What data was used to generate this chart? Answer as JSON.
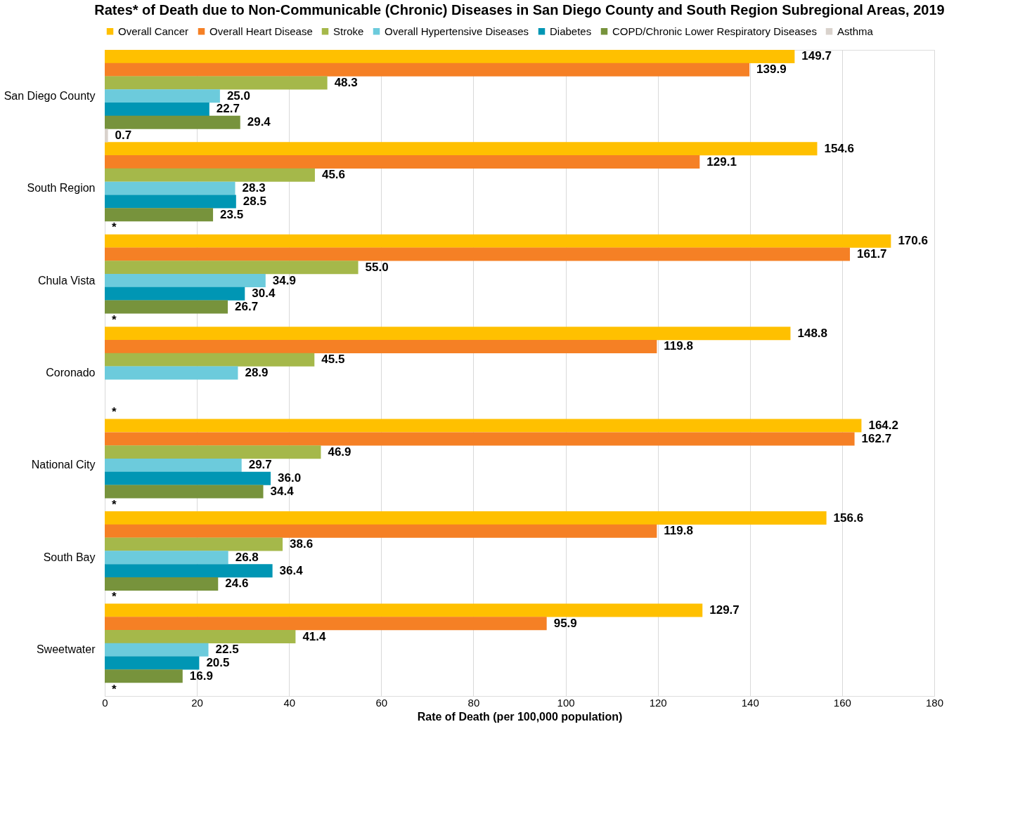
{
  "chart_data": {
    "type": "bar",
    "orientation": "horizontal",
    "title": "Rates* of Death due to Non-Communicable (Chronic) Diseases in San Diego County and South Region Subregional Areas, 2019",
    "xlabel": "Rate of Death (per 100,000 population)",
    "categories": [
      "San Diego County",
      "South Region",
      "Chula Vista",
      "Coronado",
      "National City",
      "South Bay",
      "Sweetwater"
    ],
    "series": [
      {
        "name": "Overall Cancer",
        "color": "#ffc000",
        "values": [
          149.7,
          154.6,
          170.6,
          148.8,
          164.2,
          156.6,
          129.7
        ],
        "value_labels": [
          "149.7",
          "154.6",
          "170.6",
          "148.8",
          "164.2",
          "156.6",
          "129.7"
        ]
      },
      {
        "name": "Overall Heart Disease",
        "color": "#f58025",
        "values": [
          139.9,
          129.1,
          161.7,
          119.8,
          162.7,
          119.8,
          95.9
        ],
        "value_labels": [
          "139.9",
          "129.1",
          "161.7",
          "119.8",
          "162.7",
          "119.8",
          "95.9"
        ]
      },
      {
        "name": "Stroke",
        "color": "#a5b84a",
        "values": [
          48.3,
          45.6,
          55.0,
          45.5,
          46.9,
          38.6,
          41.4
        ],
        "value_labels": [
          "48.3",
          "45.6",
          "55.0",
          "45.5",
          "46.9",
          "38.6",
          "41.4"
        ]
      },
      {
        "name": "Overall Hypertensive Diseases",
        "color": "#6ccbdc",
        "values": [
          25.0,
          28.3,
          34.9,
          28.9,
          29.7,
          26.8,
          22.5
        ],
        "value_labels": [
          "25.0",
          "28.3",
          "34.9",
          "28.9",
          "29.7",
          "26.8",
          "22.5"
        ]
      },
      {
        "name": "Diabetes",
        "color": "#0096b4",
        "values": [
          22.7,
          28.5,
          30.4,
          null,
          36.0,
          36.4,
          20.5
        ],
        "value_labels": [
          "22.7",
          "28.5",
          "30.4",
          null,
          "36.0",
          "36.4",
          "20.5"
        ]
      },
      {
        "name": "COPD/Chronic Lower Respiratory Diseases",
        "color": "#77933c",
        "values": [
          29.4,
          23.5,
          26.7,
          null,
          34.4,
          24.6,
          16.9
        ],
        "value_labels": [
          "29.4",
          "23.5",
          "26.7",
          null,
          "34.4",
          "24.6",
          "16.9"
        ]
      },
      {
        "name": "Asthma",
        "color": "#d9d2cc",
        "values": [
          0.7,
          null,
          null,
          null,
          null,
          null,
          null
        ],
        "value_labels": [
          "0.7",
          "*",
          "*",
          "*",
          "*",
          "*",
          "*"
        ]
      }
    ],
    "xlim": [
      0,
      180
    ],
    "xticks": [
      0,
      20,
      40,
      60,
      80,
      100,
      120,
      140,
      160,
      180
    ],
    "grid": "x",
    "legend": "top"
  }
}
